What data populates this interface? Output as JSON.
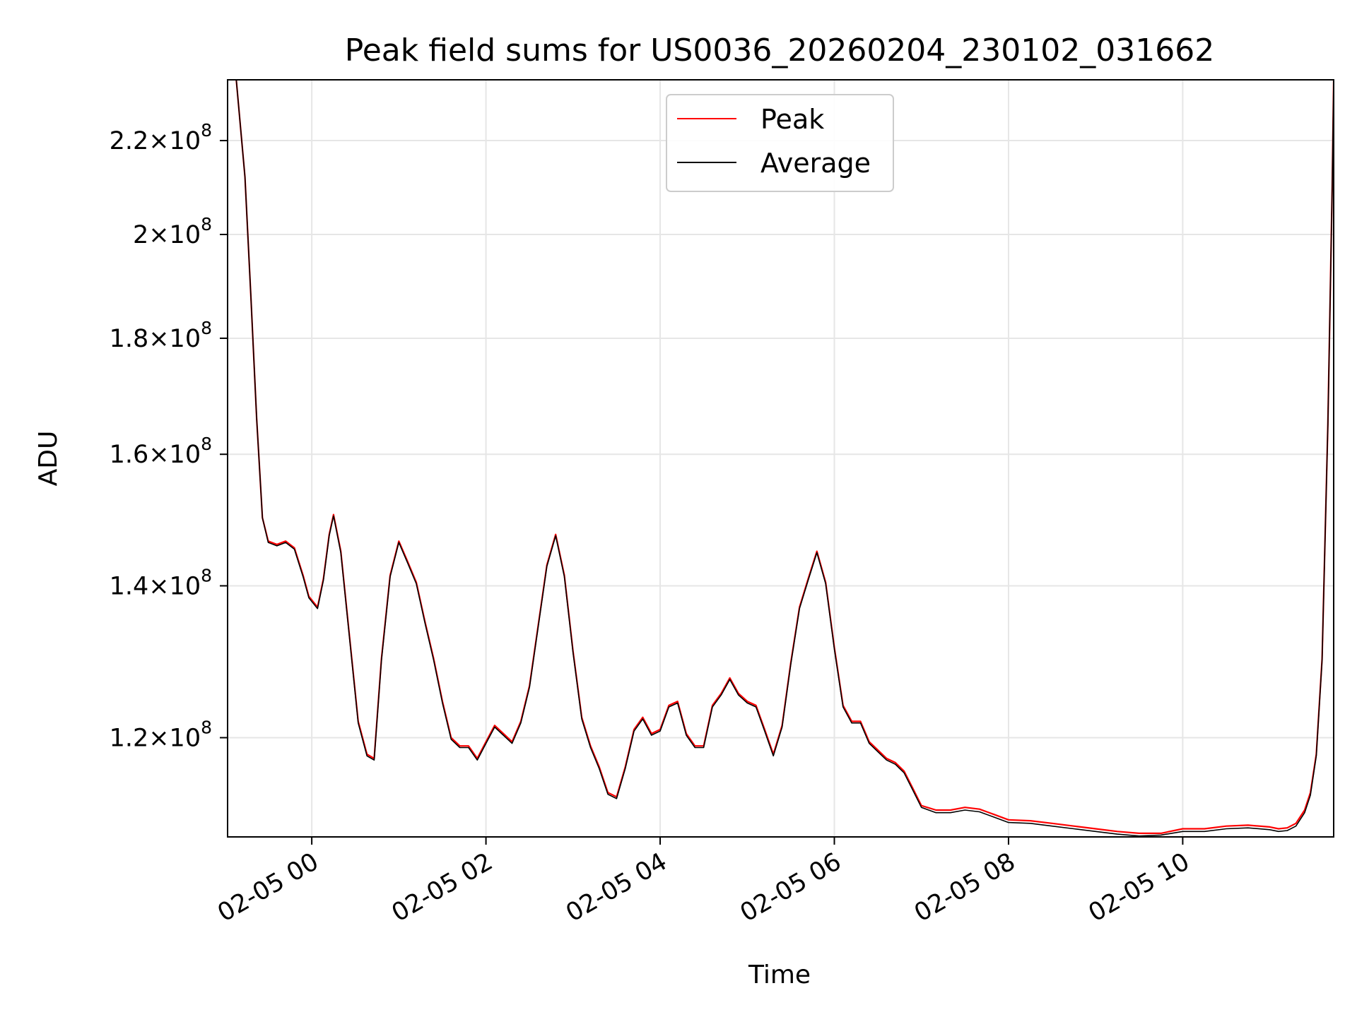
{
  "chart_data": {
    "type": "line",
    "title": "Peak field sums for US0036_20260204_230102_031662",
    "xlabel": "Time",
    "ylabel": "ADU",
    "x_unit": "time (MM-DD HH)",
    "xlim": [
      "02-04 23:02",
      "02-05 11:44"
    ],
    "ylim": [
      108500000,
      234000000
    ],
    "y_scale": "log",
    "grid": true,
    "legend_position": "upper center",
    "x_ticks": [
      {
        "x": "02-05 00:00",
        "label": "02-05 00"
      },
      {
        "x": "02-05 02:00",
        "label": "02-05 02"
      },
      {
        "x": "02-05 04:00",
        "label": "02-05 04"
      },
      {
        "x": "02-05 06:00",
        "label": "02-05 06"
      },
      {
        "x": "02-05 08:00",
        "label": "02-05 08"
      },
      {
        "x": "02-05 10:00",
        "label": "02-05 10"
      }
    ],
    "y_ticks": [
      {
        "value": 120000000,
        "mantissa": "1.2",
        "exp": "8"
      },
      {
        "value": 140000000,
        "mantissa": "1.4",
        "exp": "8"
      },
      {
        "value": 160000000,
        "mantissa": "1.6",
        "exp": "8"
      },
      {
        "value": 180000000,
        "mantissa": "1.8",
        "exp": "8"
      },
      {
        "value": 200000000,
        "mantissa": "2",
        "exp": "8"
      },
      {
        "value": 220000000,
        "mantissa": "2.2",
        "exp": "8"
      }
    ],
    "series": [
      {
        "name": "Peak",
        "color": "#ff0000",
        "points": [
          [
            "02-04 23:08",
            234000000
          ],
          [
            "02-04 23:14",
            212000000
          ],
          [
            "02-04 23:18",
            188000000
          ],
          [
            "02-04 23:22",
            166000000
          ],
          [
            "02-04 23:26",
            150000000
          ],
          [
            "02-04 23:30",
            146500000
          ],
          [
            "02-04 23:36",
            146000000
          ],
          [
            "02-04 23:42",
            146500000
          ],
          [
            "02-04 23:48",
            145500000
          ],
          [
            "02-04 23:54",
            141500000
          ],
          [
            "02-04 23:58",
            138500000
          ],
          [
            "02-05 00:04",
            137000000
          ],
          [
            "02-05 00:08",
            141000000
          ],
          [
            "02-05 00:12",
            147500000
          ],
          [
            "02-05 00:15",
            150500000
          ],
          [
            "02-05 00:20",
            145000000
          ],
          [
            "02-05 00:26",
            133000000
          ],
          [
            "02-05 00:32",
            122000000
          ],
          [
            "02-05 00:38",
            118000000
          ],
          [
            "02-05 00:43",
            117500000
          ],
          [
            "02-05 00:48",
            130000000
          ],
          [
            "02-05 00:54",
            141500000
          ],
          [
            "02-05 01:00",
            146500000
          ],
          [
            "02-05 01:06",
            143500000
          ],
          [
            "02-05 01:12",
            140500000
          ],
          [
            "02-05 01:18",
            135000000
          ],
          [
            "02-05 01:24",
            130000000
          ],
          [
            "02-05 01:30",
            124500000
          ],
          [
            "02-05 01:36",
            120000000
          ],
          [
            "02-05 01:42",
            119000000
          ],
          [
            "02-05 01:48",
            119000000
          ],
          [
            "02-05 01:54",
            117500000
          ],
          [
            "02-05 02:00",
            119500000
          ],
          [
            "02-05 02:06",
            121500000
          ],
          [
            "02-05 02:12",
            120500000
          ],
          [
            "02-05 02:18",
            119500000
          ],
          [
            "02-05 02:24",
            122000000
          ],
          [
            "02-05 02:30",
            126500000
          ],
          [
            "02-05 02:36",
            134500000
          ],
          [
            "02-05 02:42",
            143000000
          ],
          [
            "02-05 02:48",
            147500000
          ],
          [
            "02-05 02:54",
            141500000
          ],
          [
            "02-05 03:00",
            131000000
          ],
          [
            "02-05 03:06",
            122500000
          ],
          [
            "02-05 03:12",
            119000000
          ],
          [
            "02-05 03:18",
            116500000
          ],
          [
            "02-05 03:24",
            113500000
          ],
          [
            "02-05 03:30",
            113000000
          ],
          [
            "02-05 03:36",
            116500000
          ],
          [
            "02-05 03:42",
            121000000
          ],
          [
            "02-05 03:48",
            122500000
          ],
          [
            "02-05 03:54",
            120500000
          ],
          [
            "02-05 04:00",
            121000000
          ],
          [
            "02-05 04:06",
            124000000
          ],
          [
            "02-05 04:12",
            124500000
          ],
          [
            "02-05 04:18",
            120500000
          ],
          [
            "02-05 04:24",
            119000000
          ],
          [
            "02-05 04:30",
            119000000
          ],
          [
            "02-05 04:36",
            124000000
          ],
          [
            "02-05 04:42",
            125500000
          ],
          [
            "02-05 04:48",
            127500000
          ],
          [
            "02-05 04:54",
            125500000
          ],
          [
            "02-05 05:00",
            124500000
          ],
          [
            "02-05 05:06",
            124000000
          ],
          [
            "02-05 05:12",
            121000000
          ],
          [
            "02-05 05:18",
            118000000
          ],
          [
            "02-05 05:24",
            121500000
          ],
          [
            "02-05 05:30",
            129500000
          ],
          [
            "02-05 05:36",
            137000000
          ],
          [
            "02-05 05:42",
            141000000
          ],
          [
            "02-05 05:48",
            145000000
          ],
          [
            "02-05 05:54",
            140500000
          ],
          [
            "02-05 06:00",
            131500000
          ],
          [
            "02-05 06:06",
            124000000
          ],
          [
            "02-05 06:12",
            122000000
          ],
          [
            "02-05 06:18",
            122000000
          ],
          [
            "02-05 06:24",
            119500000
          ],
          [
            "02-05 06:30",
            118500000
          ],
          [
            "02-05 06:36",
            117500000
          ],
          [
            "02-05 06:42",
            117000000
          ],
          [
            "02-05 06:48",
            116000000
          ],
          [
            "02-05 06:54",
            114000000
          ],
          [
            "02-05 07:00",
            112000000
          ],
          [
            "02-05 07:10",
            111500000
          ],
          [
            "02-05 07:20",
            111500000
          ],
          [
            "02-05 07:30",
            111800000
          ],
          [
            "02-05 07:40",
            111600000
          ],
          [
            "02-05 07:50",
            111000000
          ],
          [
            "02-05 08:00",
            110400000
          ],
          [
            "02-05 08:15",
            110300000
          ],
          [
            "02-05 08:30",
            110000000
          ],
          [
            "02-05 08:45",
            109700000
          ],
          [
            "02-05 09:00",
            109400000
          ],
          [
            "02-05 09:15",
            109100000
          ],
          [
            "02-05 09:30",
            108900000
          ],
          [
            "02-05 09:45",
            108900000
          ],
          [
            "02-05 10:00",
            109400000
          ],
          [
            "02-05 10:15",
            109400000
          ],
          [
            "02-05 10:30",
            109700000
          ],
          [
            "02-05 10:45",
            109800000
          ],
          [
            "02-05 11:00",
            109600000
          ],
          [
            "02-05 11:06",
            109400000
          ],
          [
            "02-05 11:12",
            109500000
          ],
          [
            "02-05 11:18",
            110000000
          ],
          [
            "02-05 11:24",
            111500000
          ],
          [
            "02-05 11:28",
            113500000
          ],
          [
            "02-05 11:32",
            118000000
          ],
          [
            "02-05 11:36",
            130000000
          ],
          [
            "02-05 11:40",
            165000000
          ],
          [
            "02-05 11:43",
            210000000
          ],
          [
            "02-05 11:44",
            234000000
          ]
        ]
      },
      {
        "name": "Average",
        "color": "#000000",
        "points": [
          [
            "02-04 23:08",
            234000000
          ],
          [
            "02-04 23:14",
            212000000
          ],
          [
            "02-04 23:18",
            188000000
          ],
          [
            "02-04 23:22",
            166000000
          ],
          [
            "02-04 23:26",
            150000000
          ],
          [
            "02-04 23:30",
            146300000
          ],
          [
            "02-04 23:36",
            145800000
          ],
          [
            "02-04 23:42",
            146300000
          ],
          [
            "02-04 23:48",
            145300000
          ],
          [
            "02-04 23:54",
            141300000
          ],
          [
            "02-04 23:58",
            138300000
          ],
          [
            "02-05 00:04",
            136800000
          ],
          [
            "02-05 00:08",
            140800000
          ],
          [
            "02-05 00:12",
            147300000
          ],
          [
            "02-05 00:15",
            150300000
          ],
          [
            "02-05 00:20",
            144800000
          ],
          [
            "02-05 00:26",
            132800000
          ],
          [
            "02-05 00:32",
            121800000
          ],
          [
            "02-05 00:38",
            117800000
          ],
          [
            "02-05 00:43",
            117300000
          ],
          [
            "02-05 00:48",
            129800000
          ],
          [
            "02-05 00:54",
            141300000
          ],
          [
            "02-05 01:00",
            146300000
          ],
          [
            "02-05 01:06",
            143300000
          ],
          [
            "02-05 01:12",
            140300000
          ],
          [
            "02-05 01:18",
            134800000
          ],
          [
            "02-05 01:24",
            129800000
          ],
          [
            "02-05 01:30",
            124300000
          ],
          [
            "02-05 01:36",
            119800000
          ],
          [
            "02-05 01:42",
            118800000
          ],
          [
            "02-05 01:48",
            118800000
          ],
          [
            "02-05 01:54",
            117300000
          ],
          [
            "02-05 02:00",
            119300000
          ],
          [
            "02-05 02:06",
            121300000
          ],
          [
            "02-05 02:12",
            120300000
          ],
          [
            "02-05 02:18",
            119300000
          ],
          [
            "02-05 02:24",
            121800000
          ],
          [
            "02-05 02:30",
            126300000
          ],
          [
            "02-05 02:36",
            134300000
          ],
          [
            "02-05 02:42",
            142800000
          ],
          [
            "02-05 02:48",
            147300000
          ],
          [
            "02-05 02:54",
            141300000
          ],
          [
            "02-05 03:00",
            130800000
          ],
          [
            "02-05 03:06",
            122300000
          ],
          [
            "02-05 03:12",
            118800000
          ],
          [
            "02-05 03:18",
            116300000
          ],
          [
            "02-05 03:24",
            113300000
          ],
          [
            "02-05 03:30",
            112800000
          ],
          [
            "02-05 03:36",
            116300000
          ],
          [
            "02-05 03:42",
            120800000
          ],
          [
            "02-05 03:48",
            122300000
          ],
          [
            "02-05 03:54",
            120300000
          ],
          [
            "02-05 04:00",
            120800000
          ],
          [
            "02-05 04:06",
            123800000
          ],
          [
            "02-05 04:12",
            124300000
          ],
          [
            "02-05 04:18",
            120300000
          ],
          [
            "02-05 04:24",
            118800000
          ],
          [
            "02-05 04:30",
            118800000
          ],
          [
            "02-05 04:36",
            123800000
          ],
          [
            "02-05 04:42",
            125300000
          ],
          [
            "02-05 04:48",
            127300000
          ],
          [
            "02-05 04:54",
            125300000
          ],
          [
            "02-05 05:00",
            124300000
          ],
          [
            "02-05 05:06",
            123800000
          ],
          [
            "02-05 05:12",
            120800000
          ],
          [
            "02-05 05:18",
            117800000
          ],
          [
            "02-05 05:24",
            121300000
          ],
          [
            "02-05 05:30",
            129300000
          ],
          [
            "02-05 05:36",
            136800000
          ],
          [
            "02-05 05:42",
            140800000
          ],
          [
            "02-05 05:48",
            144800000
          ],
          [
            "02-05 05:54",
            140300000
          ],
          [
            "02-05 06:00",
            131300000
          ],
          [
            "02-05 06:06",
            123800000
          ],
          [
            "02-05 06:12",
            121800000
          ],
          [
            "02-05 06:18",
            121800000
          ],
          [
            "02-05 06:24",
            119300000
          ],
          [
            "02-05 06:30",
            118300000
          ],
          [
            "02-05 06:36",
            117300000
          ],
          [
            "02-05 06:42",
            116800000
          ],
          [
            "02-05 06:48",
            115800000
          ],
          [
            "02-05 06:54",
            113800000
          ],
          [
            "02-05 07:00",
            111800000
          ],
          [
            "02-05 07:10",
            111200000
          ],
          [
            "02-05 07:20",
            111200000
          ],
          [
            "02-05 07:30",
            111500000
          ],
          [
            "02-05 07:40",
            111300000
          ],
          [
            "02-05 07:50",
            110700000
          ],
          [
            "02-05 08:00",
            110100000
          ],
          [
            "02-05 08:15",
            110000000
          ],
          [
            "02-05 08:30",
            109700000
          ],
          [
            "02-05 08:45",
            109400000
          ],
          [
            "02-05 09:00",
            109100000
          ],
          [
            "02-05 09:15",
            108800000
          ],
          [
            "02-05 09:30",
            108600000
          ],
          [
            "02-05 09:45",
            108700000
          ],
          [
            "02-05 10:00",
            109100000
          ],
          [
            "02-05 10:15",
            109100000
          ],
          [
            "02-05 10:30",
            109400000
          ],
          [
            "02-05 10:45",
            109500000
          ],
          [
            "02-05 11:00",
            109300000
          ],
          [
            "02-05 11:06",
            109100000
          ],
          [
            "02-05 11:12",
            109200000
          ],
          [
            "02-05 11:18",
            109700000
          ],
          [
            "02-05 11:24",
            111200000
          ],
          [
            "02-05 11:28",
            113200000
          ],
          [
            "02-05 11:32",
            117800000
          ],
          [
            "02-05 11:36",
            129800000
          ],
          [
            "02-05 11:40",
            164800000
          ],
          [
            "02-05 11:43",
            209800000
          ],
          [
            "02-05 11:44",
            234000000
          ]
        ]
      }
    ]
  }
}
